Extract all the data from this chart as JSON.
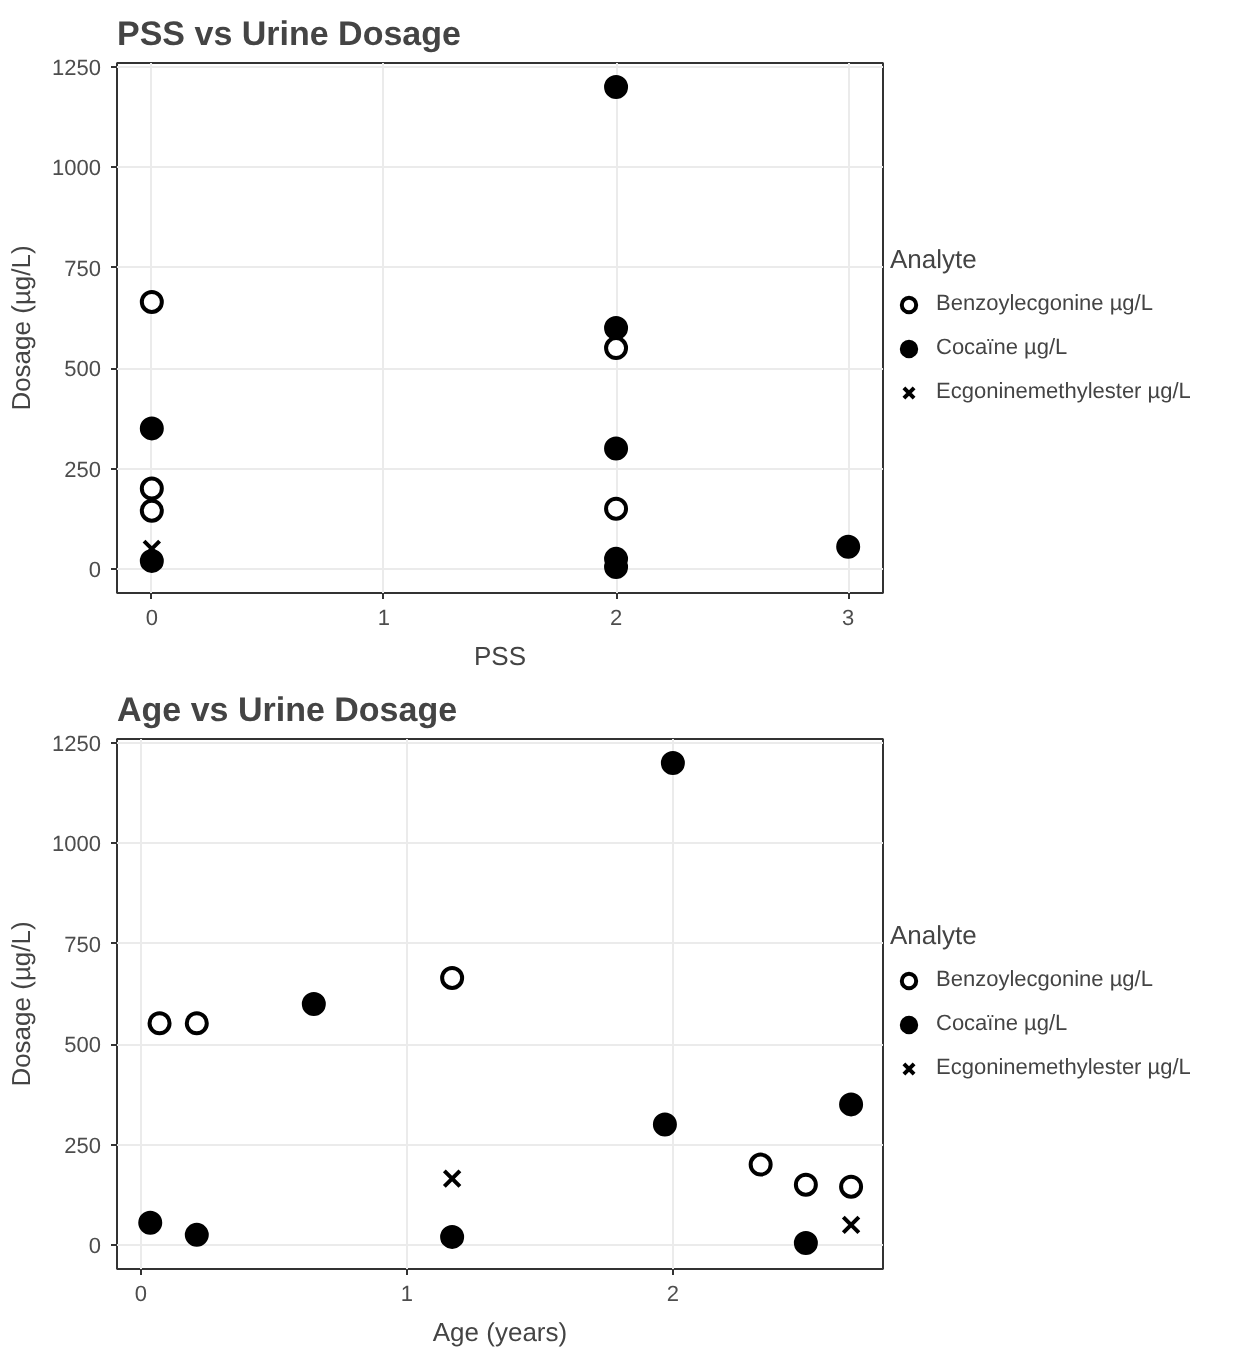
{
  "chart_data": [
    {
      "type": "scatter",
      "title": "PSS vs Urine Dosage",
      "xlabel": "PSS",
      "ylabel": "Dosage (µg/L)",
      "legend_title": "Analyte",
      "legend": "right",
      "grid": true,
      "xlim": [
        -0.15,
        3.15
      ],
      "xticks": [
        0,
        1,
        2,
        3
      ],
      "ylim": [
        -60,
        1260
      ],
      "yticks": [
        0,
        250,
        500,
        750,
        1000,
        1250
      ],
      "series": [
        {
          "name": "Benzoylecgonine µg/L",
          "color": "#ffffff",
          "marker": "circle",
          "x": [
            0,
            0,
            0,
            2,
            2
          ],
          "values": [
            665,
            200,
            145,
            550,
            150
          ]
        },
        {
          "name": "Cocaïne µg/L",
          "color": "#000000",
          "marker": "circle",
          "x": [
            0,
            0,
            2,
            2,
            2,
            2,
            2,
            3
          ],
          "values": [
            350,
            20,
            1200,
            600,
            300,
            25,
            5,
            55
          ]
        },
        {
          "name": "Ecgoninemethylester µg/L",
          "color": "#000000",
          "marker": "cross",
          "x": [
            0
          ],
          "values": [
            50
          ]
        }
      ]
    },
    {
      "type": "scatter",
      "title": "Age vs Urine Dosage",
      "xlabel": "Age (years)",
      "ylabel": "Dosage (µg/L)",
      "legend_title": "Analyte",
      "legend": "right",
      "grid": true,
      "xlim": [
        -0.09,
        2.79
      ],
      "xticks": [
        0,
        1,
        2
      ],
      "ylim": [
        -60,
        1260
      ],
      "yticks": [
        0,
        250,
        500,
        750,
        1000,
        1250
      ],
      "series": [
        {
          "name": "Benzoylecgonine µg/L",
          "color": "#ffffff",
          "marker": "circle",
          "x": [
            0.07,
            0.21,
            1.17,
            2.33,
            2.5,
            2.67
          ],
          "values": [
            552,
            552,
            665,
            200,
            150,
            145
          ]
        },
        {
          "name": "Cocaïne µg/L",
          "color": "#000000",
          "marker": "circle",
          "x": [
            0.035,
            0.21,
            0.65,
            1.17,
            2.0,
            1.97,
            2.5,
            2.67
          ],
          "values": [
            55,
            25,
            600,
            20,
            1200,
            300,
            5,
            350
          ]
        },
        {
          "name": "Ecgoninemethylester µg/L",
          "color": "#000000",
          "marker": "cross",
          "x": [
            1.17,
            2.67
          ],
          "values": [
            165,
            50
          ]
        }
      ]
    }
  ]
}
